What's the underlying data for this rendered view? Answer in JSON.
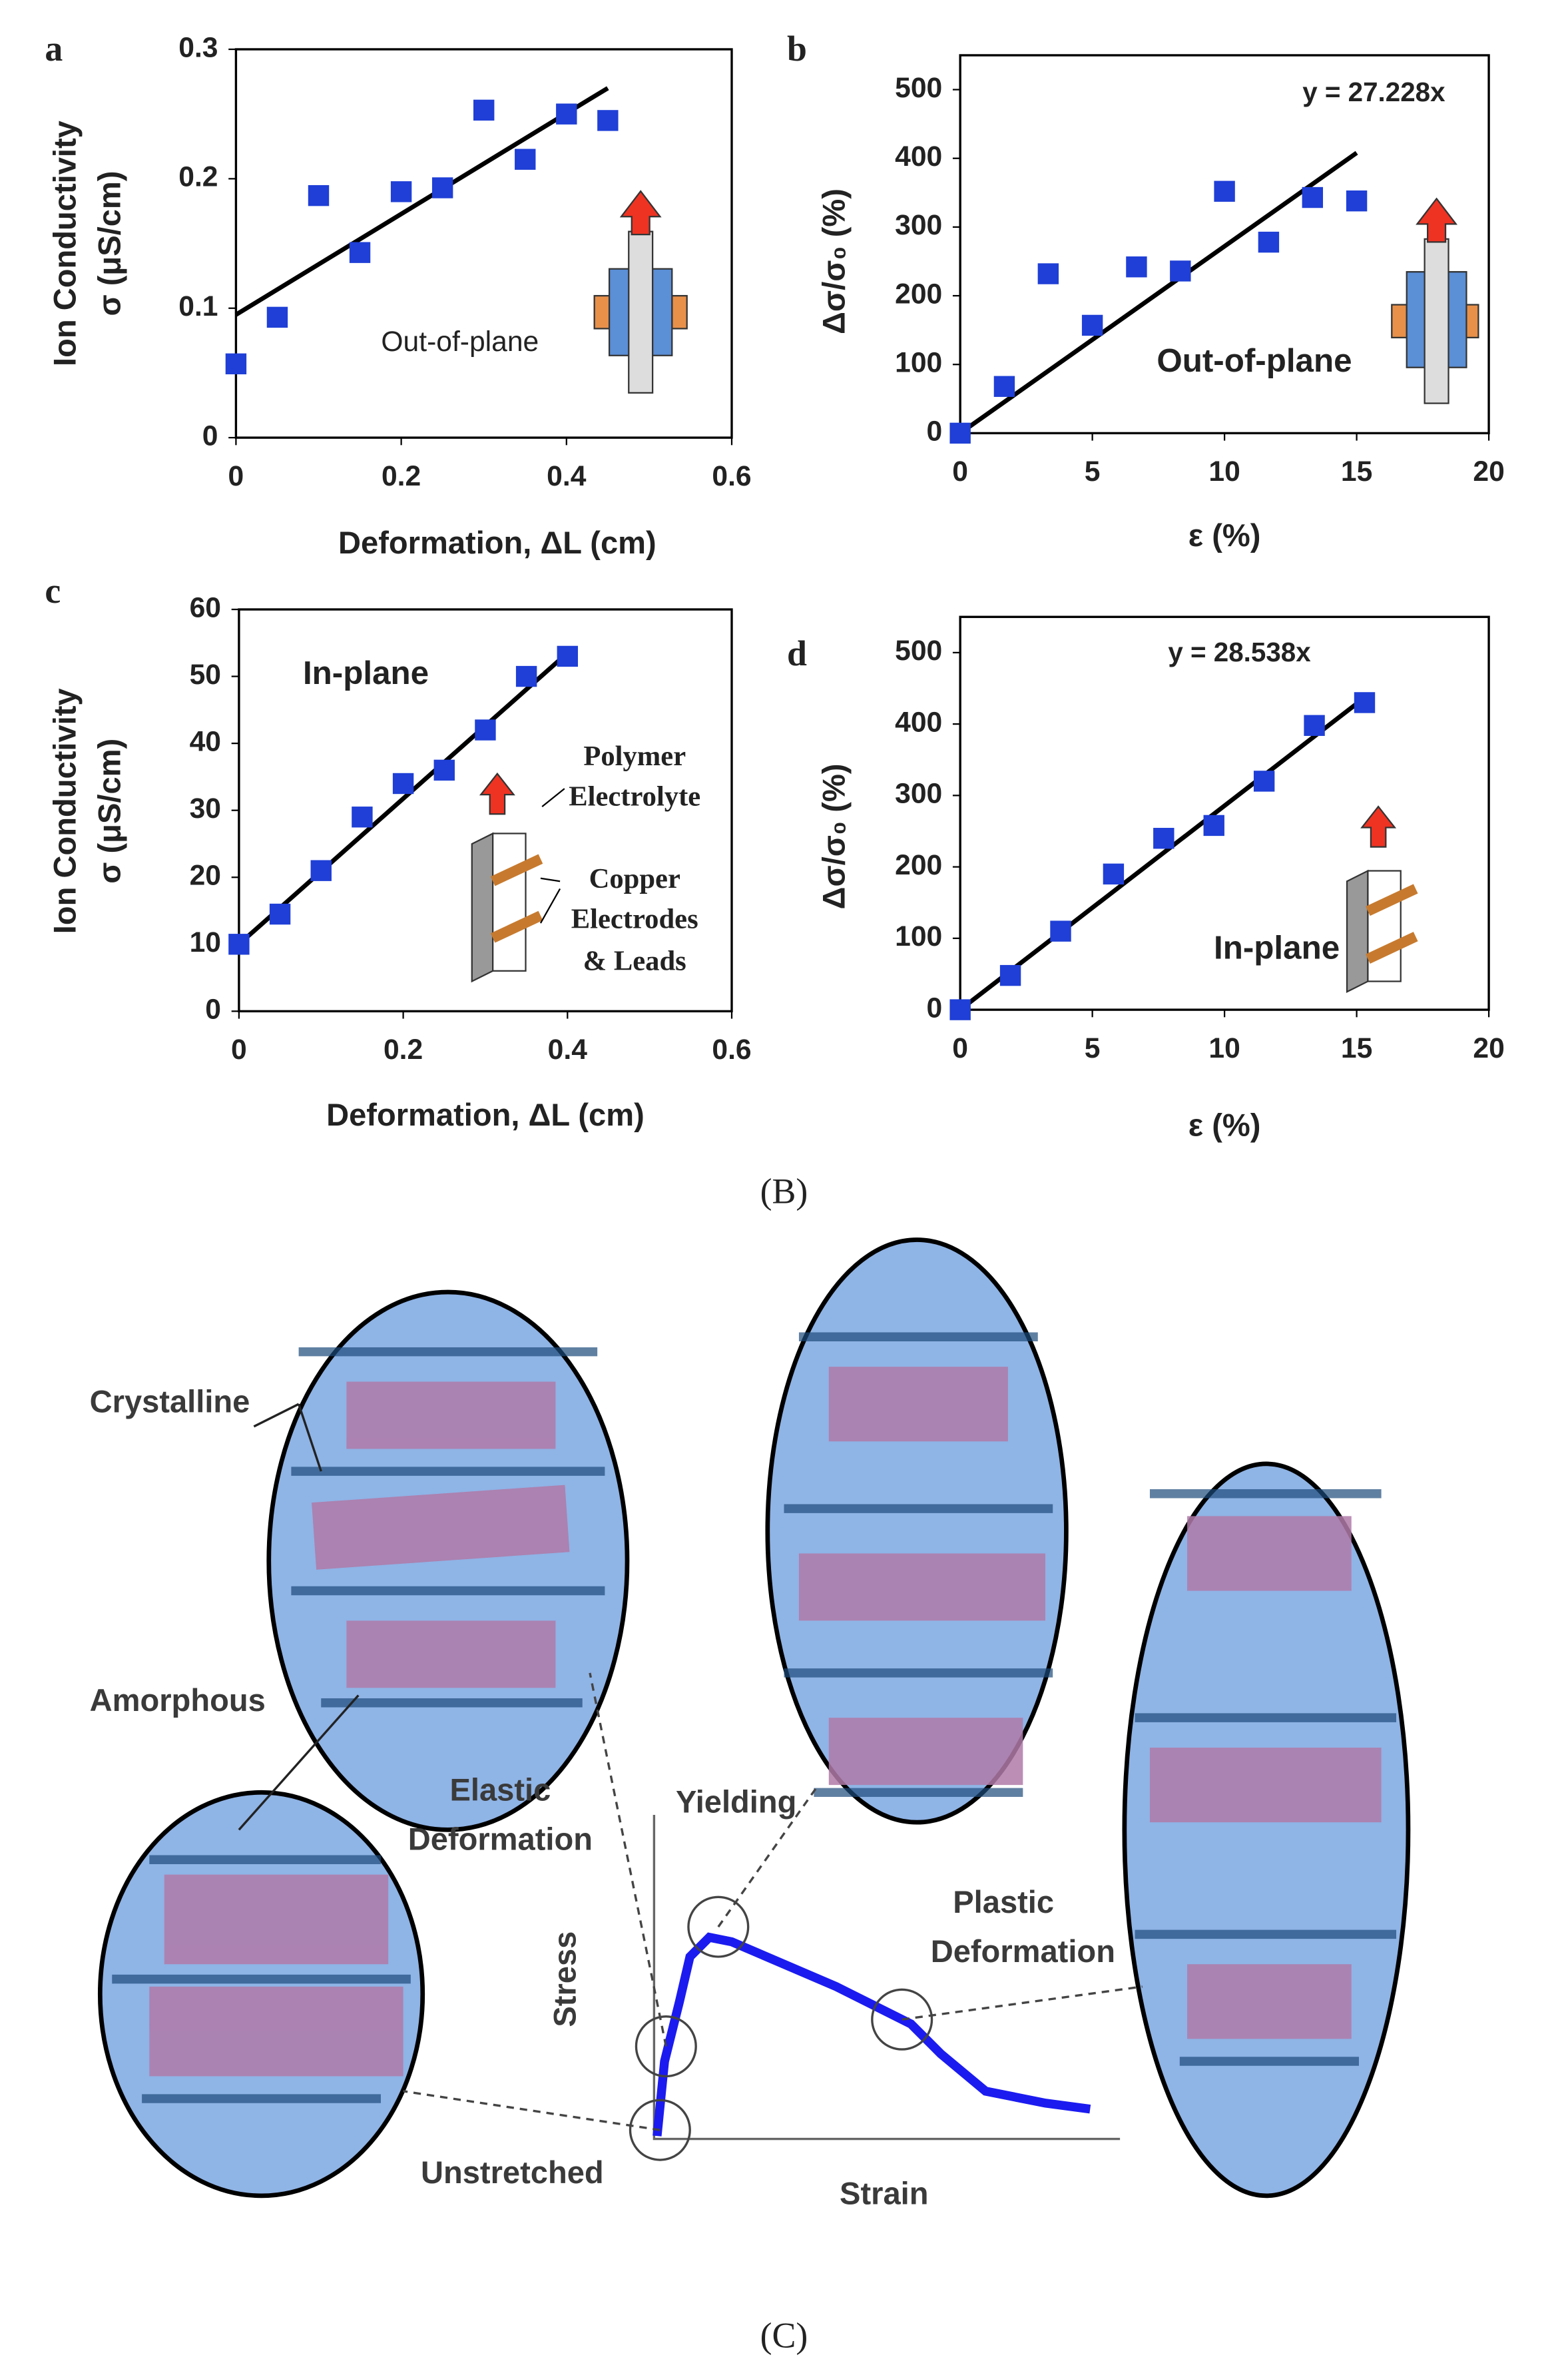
{
  "chart_data": [
    {
      "type": "scatter",
      "panel": "a",
      "y_label": [
        "Ion Conductivity",
        "σ  (μS/cm)"
      ],
      "x_label": "Deformation, ΔL (cm)",
      "x": [
        0,
        0.05,
        0.1,
        0.15,
        0.2,
        0.25,
        0.3,
        0.35,
        0.4,
        0.45
      ],
      "values": [
        0.057,
        0.093,
        0.187,
        0.143,
        0.19,
        0.193,
        0.253,
        0.215,
        0.25,
        0.245
      ],
      "color": "#1f3fd6",
      "trendline": {
        "x": [
          0,
          0.45
        ],
        "y": [
          0.095,
          0.27
        ]
      },
      "annotations": [
        "Out-of-plane"
      ],
      "xlim": [
        0,
        0.6
      ],
      "xticks": [
        0,
        0.2,
        0.4,
        0.6
      ],
      "ylim": [
        0,
        0.3
      ],
      "yticks": [
        0,
        0.1,
        0.2,
        0.3
      ]
    },
    {
      "type": "scatter",
      "panel": "b",
      "y_label": [
        "Δσ/σ₀ (%)"
      ],
      "x_label": "ε (%)",
      "x": [
        0,
        1.67,
        3.33,
        5,
        6.67,
        8.33,
        10,
        11.67,
        13.33,
        15
      ],
      "values": [
        0,
        68,
        232,
        157,
        242,
        236,
        352,
        278,
        343,
        338
      ],
      "color": "#1f3fd6",
      "trendline": {
        "x": [
          0,
          15
        ],
        "y": [
          0,
          408
        ]
      },
      "annotations": [
        "y = 27.228x",
        "Out-of-plane"
      ],
      "xlim": [
        0,
        20
      ],
      "xticks": [
        0,
        5,
        10,
        15,
        20
      ],
      "ylim": [
        0,
        550
      ],
      "yticks": [
        0,
        100,
        200,
        300,
        400,
        500
      ]
    },
    {
      "type": "scatter",
      "panel": "c",
      "y_label": [
        "Ion Conductivity",
        "σ (μS/cm)"
      ],
      "x_label": "Deformation, ΔL (cm)",
      "x": [
        0,
        0.05,
        0.1,
        0.15,
        0.2,
        0.25,
        0.3,
        0.35,
        0.4
      ],
      "values": [
        10,
        14.5,
        21,
        29,
        34,
        36,
        42,
        50,
        53
      ],
      "color": "#1f3fd6",
      "trendline": {
        "x": [
          0,
          0.4
        ],
        "y": [
          10,
          53.5
        ]
      },
      "annotations": [
        "In-plane",
        "Polymer",
        "Electrolyte",
        "Copper",
        "Electrodes",
        "& Leads"
      ],
      "xlim": [
        0,
        0.6
      ],
      "xticks": [
        0,
        0.2,
        0.4,
        0.6
      ],
      "ylim": [
        0,
        60
      ],
      "yticks": [
        0,
        10,
        20,
        30,
        40,
        50,
        60
      ]
    },
    {
      "type": "scatter",
      "panel": "d",
      "y_label": [
        "Δσ/σ₀ (%)"
      ],
      "x_label": "ε (%)",
      "x": [
        0,
        1.9,
        3.8,
        5.8,
        7.7,
        9.6,
        11.5,
        13.4,
        15.3
      ],
      "values": [
        0,
        48,
        110,
        190,
        240,
        258,
        320,
        398,
        430
      ],
      "color": "#1f3fd6",
      "trendline": {
        "x": [
          0,
          15.3
        ],
        "y": [
          0,
          437
        ]
      },
      "annotations": [
        "y = 28.538x",
        "In-plane"
      ],
      "xlim": [
        0,
        20
      ],
      "xticks": [
        0,
        5,
        10,
        15,
        20
      ],
      "ylim": [
        0,
        550
      ],
      "yticks": [
        0,
        100,
        200,
        300,
        400,
        500
      ]
    }
  ],
  "captions": [
    "(B)",
    "(C)"
  ],
  "diagram": {
    "labels": [
      "Crystalline",
      "Amorphous",
      "Elastic",
      "Deformation",
      "Yielding",
      "Plastic",
      "Deformation",
      "Stress",
      "Strain",
      "Unstretched"
    ]
  }
}
